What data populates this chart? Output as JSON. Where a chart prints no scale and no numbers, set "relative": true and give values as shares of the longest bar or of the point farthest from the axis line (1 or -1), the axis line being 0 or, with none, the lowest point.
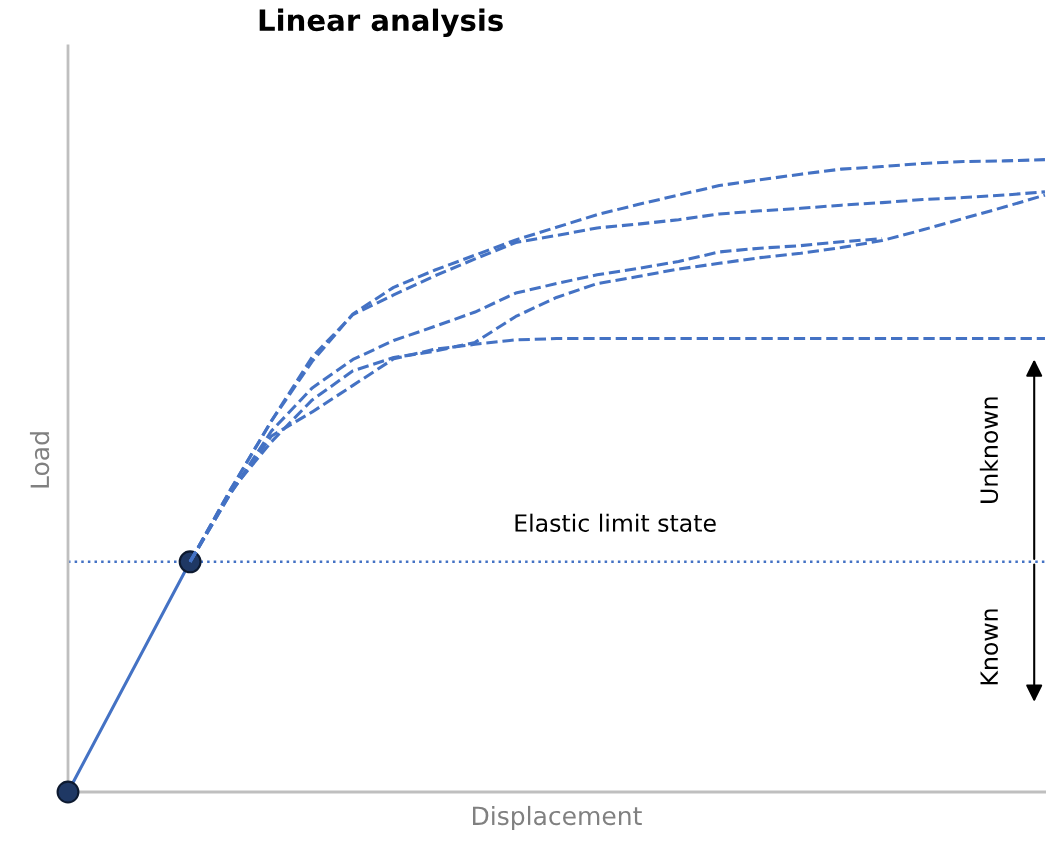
{
  "chart_data": {
    "type": "line",
    "title": "Linear analysis",
    "xlabel": "Displacement",
    "ylabel": "Load",
    "relative": true,
    "legend": false,
    "categories": [
      null,
      null,
      null,
      null,
      null,
      null,
      null,
      null,
      null,
      null,
      null,
      null,
      null,
      null,
      null,
      null,
      null,
      null,
      null,
      null,
      null,
      null,
      null,
      null,
      null
    ],
    "series": [
      {
        "color": "#4472c4",
        "line_style": "solid",
        "marker": "circle",
        "values": [
          0,
          null,
          null,
          0.364,
          null,
          null,
          null,
          null,
          null,
          null,
          null,
          null,
          null,
          null,
          null,
          null,
          null,
          null,
          null,
          null,
          null,
          null,
          null,
          null,
          null
        ]
      },
      {
        "color": "#4472c4",
        "line_style": "dashed",
        "values": [
          null,
          null,
          null,
          0.364,
          0.479,
          0.587,
          0.681,
          0.756,
          0.798,
          0.825,
          0.849,
          0.873,
          0.893,
          0.913,
          0.929,
          0.944,
          0.959,
          0.968,
          0.977,
          0.985,
          0.989,
          0.994,
          0.997,
          0.998,
          1
        ]
      },
      {
        "color": "#4472c4",
        "line_style": "dashed",
        "values": [
          null,
          null,
          null,
          0.364,
          0.479,
          0.587,
          0.688,
          0.755,
          0.786,
          0.816,
          0.843,
          0.869,
          0.88,
          0.892,
          0.898,
          0.905,
          0.914,
          0.919,
          0.923,
          0.928,
          0.932,
          0.937,
          0.94,
          0.944,
          0.949
        ]
      },
      {
        "color": "#4472c4",
        "line_style": "dashed",
        "values": [
          null,
          null,
          null,
          0.364,
          0.473,
          0.571,
          0.639,
          0.684,
          0.714,
          0.736,
          0.759,
          0.789,
          0.804,
          0.818,
          0.828,
          0.839,
          0.854,
          0.86,
          0.864,
          0.87,
          0.875,
          null,
          null,
          null,
          null
        ]
      },
      {
        "color": "#4472c4",
        "line_style": "dashed",
        "values": [
          null,
          null,
          null,
          0.364,
          0.476,
          0.554,
          0.62,
          0.666,
          0.687,
          0.697,
          0.711,
          0.752,
          0.782,
          0.804,
          0.815,
          0.827,
          0.836,
          0.845,
          0.852,
          0.861,
          0.872,
          0.889,
          0.907,
          0.925,
          0.944
        ]
      },
      {
        "color": "#4472c4",
        "line_style": "dashed",
        "values": [
          null,
          null,
          null,
          0.364,
          0.473,
          0.563,
          0.601,
          0.643,
          0.685,
          0.7,
          0.708,
          0.715,
          0.717,
          0.717,
          0.717,
          0.717,
          0.717,
          0.717,
          0.717,
          0.717,
          0.717,
          0.717,
          0.717,
          0.717,
          0.717
        ]
      }
    ],
    "ref_lines": [
      {
        "axis": "y",
        "value": 0.364,
        "label": "Elastic limit state",
        "color": "#4472c4",
        "line_style": "dotted"
      }
    ],
    "annotations": [
      "Unknown",
      "Known"
    ]
  }
}
